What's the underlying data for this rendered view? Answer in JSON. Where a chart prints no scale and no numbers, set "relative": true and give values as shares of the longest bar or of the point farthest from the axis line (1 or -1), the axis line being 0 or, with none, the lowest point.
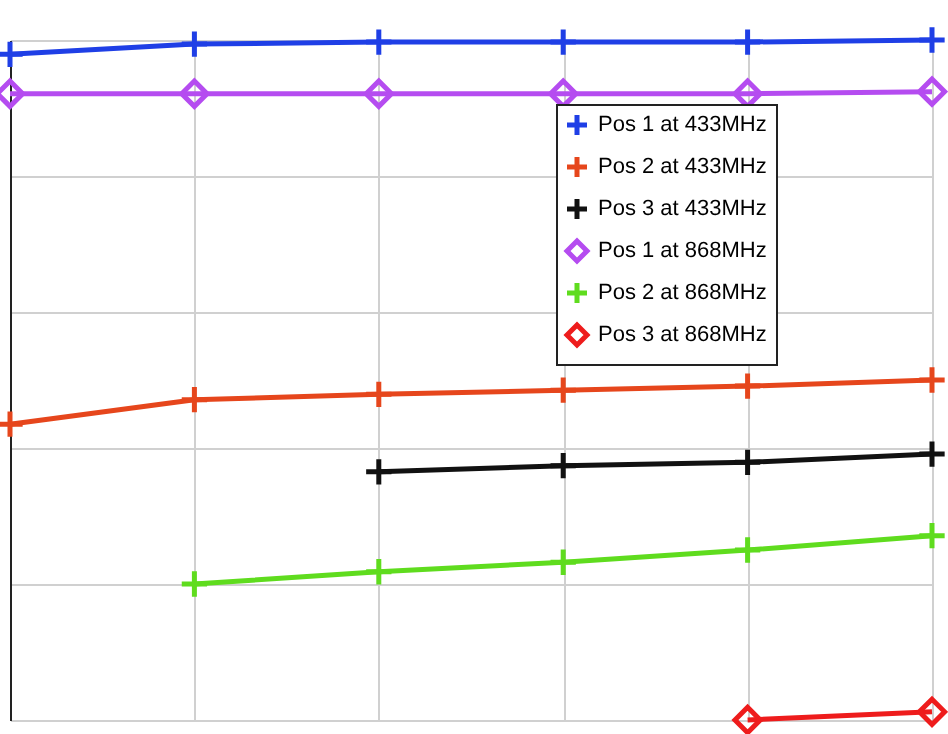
{
  "chart_data": {
    "type": "line",
    "relative": true,
    "categories": [
      null,
      null,
      null,
      null,
      null,
      null
    ],
    "grid": true,
    "legend": "top right",
    "line_style": "solid",
    "series": [
      {
        "name": "Pos 1 at 433MHz",
        "color": "#1f3fe6",
        "marker": "cross",
        "values": [
          0.979,
          0.994,
          0.997,
          0.997,
          0.997,
          1
        ]
      },
      {
        "name": "Pos 2 at 433MHz",
        "color": "#e6461c",
        "marker": "cross",
        "values": [
          0.435,
          0.471,
          0.479,
          0.485,
          0.491,
          0.5
        ]
      },
      {
        "name": "Pos 3 at 433MHz",
        "color": "#111111",
        "marker": "cross",
        "values": [
          null,
          null,
          0.365,
          0.374,
          0.379,
          0.391
        ]
      },
      {
        "name": "Pos 1 at 868MHz",
        "color": "#b54cf0",
        "marker": "diamond",
        "values": [
          0.921,
          0.921,
          0.921,
          0.921,
          0.921,
          0.924
        ]
      },
      {
        "name": "Pos 2 at 868MHz",
        "color": "#5fdc1e",
        "marker": "cross",
        "values": [
          null,
          0.2,
          0.218,
          0.232,
          0.25,
          0.271
        ]
      },
      {
        "name": "Pos 3 at 868MHz",
        "color": "#ee1c1c",
        "marker": "diamond",
        "values": [
          null,
          null,
          null,
          null,
          0,
          0.012
        ]
      }
    ]
  }
}
